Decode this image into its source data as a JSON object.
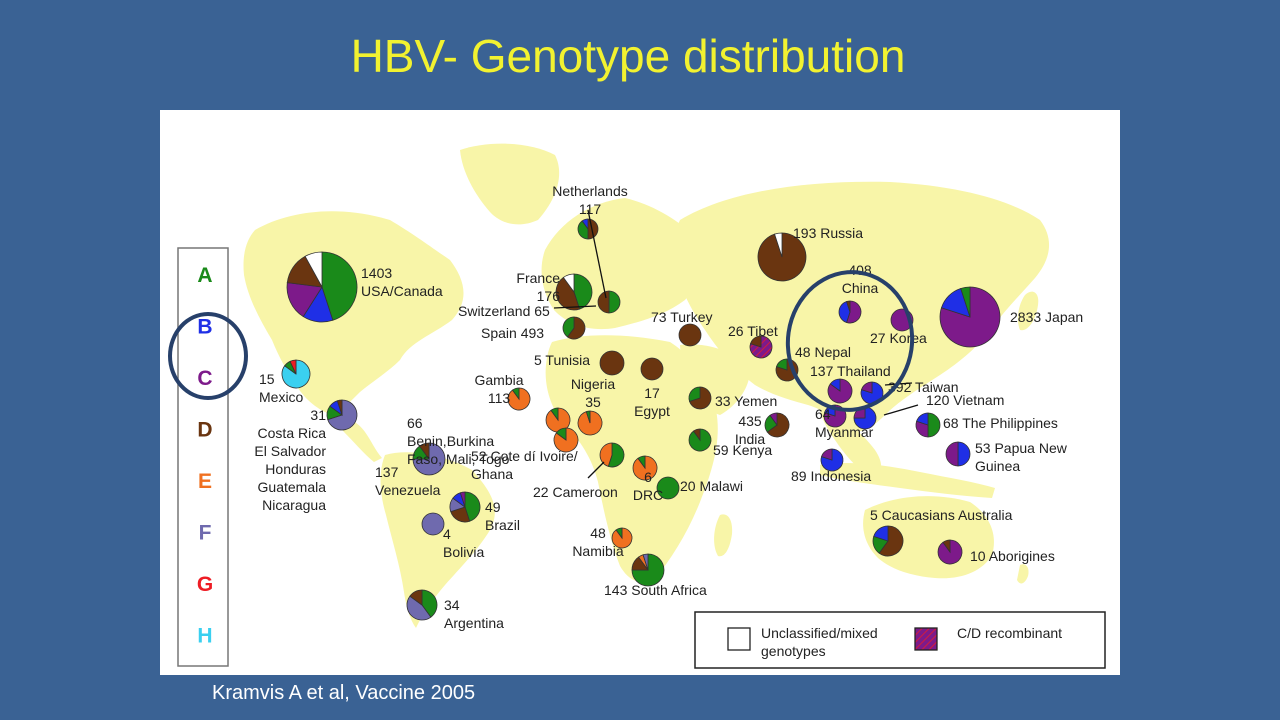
{
  "slide": {
    "title": "HBV- Genotype distribution",
    "citation": "Kramvis A et al, Vaccine 2005"
  },
  "genotype_legend": [
    {
      "letter": "A",
      "color": "#1a8a1a"
    },
    {
      "letter": "B",
      "color": "#1f2fe6"
    },
    {
      "letter": "C",
      "color": "#7d1a8a"
    },
    {
      "letter": "D",
      "color": "#6a3510"
    },
    {
      "letter": "E",
      "color": "#f07020"
    },
    {
      "letter": "F",
      "color": "#6f6aae"
    },
    {
      "letter": "G",
      "color": "#ee1c24"
    },
    {
      "letter": "H",
      "color": "#3ad0f0"
    }
  ],
  "colors": {
    "land": "#f8f5a8",
    "pie_stroke": "#333333",
    "label": "#222222",
    "highlight_ring": "#27406a"
  },
  "map_legend": {
    "unclassified_label_line1": "Unclassified/mixed",
    "unclassified_label_line2": "genotypes",
    "unclassified_color": "#ffffff",
    "recombinant_label": "C/D recombinant",
    "recombinant_color": "#7d1a8a"
  },
  "regions": [
    {
      "id": "usa-canada",
      "n": "1403",
      "name": "USA/Canada",
      "labels": [
        "1403",
        "USA/Canada"
      ],
      "shares": [
        [
          "A",
          0.45
        ],
        [
          "B",
          0.14
        ],
        [
          "C",
          0.18
        ],
        [
          "D",
          0.15
        ],
        [
          "U",
          0.08
        ]
      ]
    },
    {
      "id": "mexico",
      "n": "15",
      "name": "Mexico",
      "labels": [
        "15",
        "Mexico"
      ],
      "shares": [
        [
          "H",
          0.85
        ],
        [
          "A",
          0.08
        ],
        [
          "G",
          0.07
        ]
      ]
    },
    {
      "id": "central-america",
      "n": "31",
      "name": "Costa Rica El Salvador Honduras Guatemala Nicaragua",
      "labels": [
        "31",
        "Costa Rica",
        "El Salvador",
        "Honduras",
        "Guatemala",
        "Nicaragua"
      ],
      "shares": [
        [
          "F",
          0.7
        ],
        [
          "A",
          0.15
        ],
        [
          "B",
          0.1
        ],
        [
          "D",
          0.05
        ]
      ]
    },
    {
      "id": "venezuela",
      "n": "137",
      "name": "Venezuela",
      "labels": [
        "137",
        "Venezuela"
      ],
      "shares": [
        [
          "F",
          0.75
        ],
        [
          "A",
          0.15
        ],
        [
          "D",
          0.1
        ]
      ]
    },
    {
      "id": "brazil",
      "n": "49",
      "name": "Brazil",
      "labels": [
        "49",
        "Brazil"
      ],
      "shares": [
        [
          "A",
          0.45
        ],
        [
          "D",
          0.25
        ],
        [
          "F",
          0.15
        ],
        [
          "B",
          0.1
        ],
        [
          "C",
          0.05
        ]
      ]
    },
    {
      "id": "bolivia",
      "n": "4",
      "name": "Bolivia",
      "labels": [
        "4",
        "Bolivia"
      ],
      "shares": [
        [
          "F",
          1.0
        ]
      ]
    },
    {
      "id": "argentina",
      "n": "34",
      "name": "Argentina",
      "labels": [
        "34",
        "Argentina"
      ],
      "shares": [
        [
          "A",
          0.4
        ],
        [
          "F",
          0.45
        ],
        [
          "D",
          0.15
        ]
      ]
    },
    {
      "id": "netherlands",
      "n": "117",
      "name": "Netherlands",
      "labels": [
        "Netherlands",
        "117"
      ],
      "shares": [
        [
          "D",
          0.5
        ],
        [
          "A",
          0.4
        ],
        [
          "B",
          0.1
        ]
      ]
    },
    {
      "id": "france",
      "n": "176",
      "name": "France",
      "labels": [
        "France",
        "176"
      ],
      "shares": [
        [
          "A",
          0.45
        ],
        [
          "D",
          0.45
        ],
        [
          "U",
          0.1
        ]
      ]
    },
    {
      "id": "switzerland",
      "n": "65",
      "name": "Switzerland",
      "labels": [
        "Switzerland 65"
      ],
      "shares": [
        [
          "A",
          0.5
        ],
        [
          "D",
          0.5
        ]
      ]
    },
    {
      "id": "spain",
      "n": "493",
      "name": "Spain",
      "labels": [
        "Spain 493"
      ],
      "shares": [
        [
          "D",
          0.6
        ],
        [
          "A",
          0.4
        ]
      ]
    },
    {
      "id": "tunisia",
      "n": "5",
      "name": "Tunisia",
      "labels": [
        "5 Tunisia"
      ],
      "shares": [
        [
          "D",
          1.0
        ]
      ]
    },
    {
      "id": "gambia",
      "n": "113",
      "name": "Gambia",
      "labels": [
        "Gambia",
        "113"
      ],
      "shares": [
        [
          "E",
          0.9
        ],
        [
          "A",
          0.1
        ]
      ]
    },
    {
      "id": "nigeria",
      "n": "35",
      "name": "Nigeria",
      "labels": [
        "Nigeria",
        "35"
      ],
      "shares": [
        [
          "E",
          0.95
        ],
        [
          "A",
          0.05
        ]
      ]
    },
    {
      "id": "benin",
      "n": "66",
      "name": "Benin,Burkina Faso, Mali, Togo",
      "labels": [
        "66",
        "Benin,Burkina",
        "Faso, Mali, Togo"
      ],
      "shares": [
        [
          "E",
          0.9
        ],
        [
          "A",
          0.1
        ]
      ]
    },
    {
      "id": "cote-divoire",
      "n": "52",
      "name": "Cote dí Ivoire/ Ghana",
      "labels": [
        "52 Cote dí Ivoire/",
        "Ghana"
      ],
      "shares": [
        [
          "E",
          0.85
        ],
        [
          "A",
          0.15
        ]
      ]
    },
    {
      "id": "cameroon",
      "n": "22",
      "name": "Cameroon",
      "labels": [
        "22 Cameroon"
      ],
      "shares": [
        [
          "A",
          0.55
        ],
        [
          "E",
          0.45
        ]
      ]
    },
    {
      "id": "drc",
      "n": "6",
      "name": "DRC",
      "labels": [
        "6",
        "DRC"
      ],
      "shares": [
        [
          "E",
          0.9
        ],
        [
          "A",
          0.1
        ]
      ]
    },
    {
      "id": "egypt",
      "n": "17",
      "name": "Egypt",
      "labels": [
        "17",
        "Egypt"
      ],
      "shares": [
        [
          "D",
          1.0
        ]
      ]
    },
    {
      "id": "turkey",
      "n": "73",
      "name": "Turkey",
      "labels": [
        "73 Turkey"
      ],
      "shares": [
        [
          "D",
          1.0
        ]
      ]
    },
    {
      "id": "yemen",
      "n": "33",
      "name": "Yemen",
      "labels": [
        "33 Yemen"
      ],
      "shares": [
        [
          "D",
          0.7
        ],
        [
          "A",
          0.3
        ]
      ]
    },
    {
      "id": "kenya",
      "n": "59",
      "name": "Kenya",
      "labels": [
        "59 Kenya"
      ],
      "shares": [
        [
          "A",
          0.9
        ],
        [
          "D",
          0.1
        ]
      ]
    },
    {
      "id": "malawi",
      "n": "20",
      "name": "Malawi",
      "labels": [
        "20 Malawi"
      ],
      "shares": [
        [
          "A",
          1.0
        ]
      ]
    },
    {
      "id": "namibia",
      "n": "48",
      "name": "Namibia",
      "labels": [
        "48",
        "Namibia"
      ],
      "shares": [
        [
          "E",
          0.9
        ],
        [
          "A",
          0.1
        ]
      ]
    },
    {
      "id": "south-africa",
      "n": "143",
      "name": "South Africa",
      "labels": [
        "143 South Africa"
      ],
      "shares": [
        [
          "A",
          0.75
        ],
        [
          "D",
          0.15
        ],
        [
          "E",
          0.05
        ],
        [
          "F",
          0.05
        ]
      ]
    },
    {
      "id": "russia",
      "n": "193",
      "name": "Russia",
      "labels": [
        "193 Russia"
      ],
      "shares": [
        [
          "D",
          0.95
        ],
        [
          "U",
          0.05
        ]
      ]
    },
    {
      "id": "china",
      "n": "408",
      "name": "China",
      "labels": [
        "408",
        "China"
      ],
      "shares": [
        [
          "C",
          0.55
        ],
        [
          "B",
          0.4
        ],
        [
          "D",
          0.05
        ]
      ]
    },
    {
      "id": "korea",
      "n": "27",
      "name": "Korea",
      "labels": [
        "27 Korea"
      ],
      "shares": [
        [
          "C",
          1.0
        ]
      ]
    },
    {
      "id": "japan",
      "n": "2833",
      "name": "Japan",
      "labels": [
        "2833 Japan"
      ],
      "shares": [
        [
          "C",
          0.8
        ],
        [
          "B",
          0.15
        ],
        [
          "A",
          0.05
        ]
      ]
    },
    {
      "id": "tibet",
      "n": "26",
      "name": "Tibet",
      "labels": [
        "26 Tibet"
      ],
      "shares": [
        [
          "R",
          0.8
        ],
        [
          "D",
          0.2
        ]
      ]
    },
    {
      "id": "nepal",
      "n": "48",
      "name": "Nepal",
      "labels": [
        "48 Nepal"
      ],
      "shares": [
        [
          "D",
          0.8
        ],
        [
          "A",
          0.2
        ]
      ]
    },
    {
      "id": "india",
      "n": "435",
      "name": "India",
      "labels": [
        "435",
        "India"
      ],
      "shares": [
        [
          "D",
          0.65
        ],
        [
          "A",
          0.25
        ],
        [
          "C",
          0.1
        ]
      ]
    },
    {
      "id": "thailand",
      "n": "137",
      "name": "Thailand",
      "labels": [
        "137 Thailand"
      ],
      "shares": [
        [
          "C",
          0.85
        ],
        [
          "B",
          0.15
        ]
      ]
    },
    {
      "id": "myanmar",
      "n": "64",
      "name": "Myanmar",
      "labels": [
        "64",
        "Myanmar"
      ],
      "shares": [
        [
          "C",
          0.8
        ],
        [
          "B",
          0.2
        ]
      ]
    },
    {
      "id": "taiwan",
      "n": "392",
      "name": "Taiwan",
      "labels": [
        "392 Taiwan"
      ],
      "shares": [
        [
          "B",
          0.8
        ],
        [
          "C",
          0.2
        ]
      ]
    },
    {
      "id": "vietnam",
      "n": "120",
      "name": "Vietnam",
      "labels": [
        "120 Vietnam"
      ],
      "shares": [
        [
          "B",
          0.75
        ],
        [
          "C",
          0.25
        ]
      ]
    },
    {
      "id": "philippines",
      "n": "68",
      "name": "The Philippines",
      "labels": [
        "68 The Philippines"
      ],
      "shares": [
        [
          "A",
          0.5
        ],
        [
          "C",
          0.3
        ],
        [
          "B",
          0.2
        ]
      ]
    },
    {
      "id": "indonesia",
      "n": "89",
      "name": "Indonesia",
      "labels": [
        "89 Indonesia"
      ],
      "shares": [
        [
          "B",
          0.8
        ],
        [
          "C",
          0.2
        ]
      ]
    },
    {
      "id": "papua",
      "n": "53",
      "name": "Papua New Guinea",
      "labels": [
        "53 Papua New",
        "Guinea"
      ],
      "shares": [
        [
          "B",
          0.5
        ],
        [
          "C",
          0.5
        ]
      ]
    },
    {
      "id": "australia",
      "n": "5",
      "name": "Caucasians Australia",
      "labels": [
        "5 Caucasians Australia"
      ],
      "shares": [
        [
          "D",
          0.6
        ],
        [
          "A",
          0.2
        ],
        [
          "B",
          0.2
        ]
      ]
    },
    {
      "id": "aborigines",
      "n": "10",
      "name": "Aborigines",
      "labels": [
        "10 Aborigines"
      ],
      "shares": [
        [
          "C",
          0.9
        ],
        [
          "D",
          0.1
        ]
      ]
    }
  ]
}
